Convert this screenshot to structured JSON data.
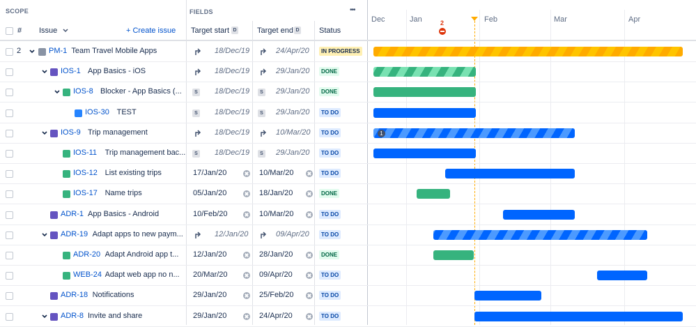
{
  "header": {
    "scope_label": "SCOPE",
    "fields_label": "FIELDS",
    "hash_label": "#",
    "issue_label": "Issue",
    "create_issue_label": "+ Create issue",
    "target_start_label": "Target start",
    "target_end_label": "Target end",
    "d_badge": "D",
    "status_label": "Status",
    "more_label": "•••"
  },
  "timeline": {
    "months": [
      "Dec",
      "Jan",
      "Feb",
      "Mar",
      "Apr"
    ],
    "today_marker_count": "2"
  },
  "rows": [
    {
      "num": "2",
      "key": "PM-1",
      "summary": "Team Travel Mobile Apps",
      "type": "init",
      "start": "18/Dec/19",
      "end": "24/Apr/20",
      "status": "IN PROGRESS",
      "bar_badge": ""
    },
    {
      "num": "",
      "key": "IOS-1",
      "summary": "App Basics - iOS",
      "type": "epic",
      "start": "18/Dec/19",
      "end": "29/Jan/20",
      "status": "DONE",
      "bar_badge": ""
    },
    {
      "num": "",
      "key": "IOS-8",
      "summary": "Blocker - App Basics (...",
      "type": "story",
      "start": "18/Dec/19",
      "end": "29/Jan/20",
      "status": "DONE",
      "bar_badge": ""
    },
    {
      "num": "",
      "key": "IOS-30",
      "summary": "TEST",
      "type": "task",
      "start": "18/Dec/19",
      "end": "29/Jan/20",
      "status": "TO DO",
      "bar_badge": ""
    },
    {
      "num": "",
      "key": "IOS-9",
      "summary": "Trip management",
      "type": "epic",
      "start": "18/Dec/19",
      "end": "10/Mar/20",
      "status": "TO DO",
      "bar_badge": "1"
    },
    {
      "num": "",
      "key": "IOS-11",
      "summary": "Trip management bac...",
      "type": "story",
      "start": "18/Dec/19",
      "end": "29/Jan/20",
      "status": "TO DO",
      "bar_badge": ""
    },
    {
      "num": "",
      "key": "IOS-12",
      "summary": "List existing trips",
      "type": "story",
      "start": "17/Jan/20",
      "end": "10/Mar/20",
      "status": "TO DO",
      "bar_badge": ""
    },
    {
      "num": "",
      "key": "IOS-17",
      "summary": "Name trips",
      "type": "story",
      "start": "05/Jan/20",
      "end": "18/Jan/20",
      "status": "DONE",
      "bar_badge": ""
    },
    {
      "num": "",
      "key": "ADR-1",
      "summary": "App Basics - Android",
      "type": "epic",
      "start": "10/Feb/20",
      "end": "10/Mar/20",
      "status": "TO DO",
      "bar_badge": ""
    },
    {
      "num": "",
      "key": "ADR-19",
      "summary": "Adapt apps to new paym...",
      "type": "epic",
      "start": "12/Jan/20",
      "end": "09/Apr/20",
      "status": "TO DO",
      "bar_badge": ""
    },
    {
      "num": "",
      "key": "ADR-20",
      "summary": "Adapt Android app t...",
      "type": "story",
      "start": "12/Jan/20",
      "end": "28/Jan/20",
      "status": "DONE",
      "bar_badge": ""
    },
    {
      "num": "",
      "key": "WEB-24",
      "summary": "Adapt web app no n...",
      "type": "story",
      "start": "20/Mar/20",
      "end": "09/Apr/20",
      "status": "TO DO",
      "bar_badge": ""
    },
    {
      "num": "",
      "key": "ADR-18",
      "summary": "Notifications",
      "type": "epic",
      "start": "29/Jan/20",
      "end": "25/Feb/20",
      "status": "TO DO",
      "bar_badge": ""
    },
    {
      "num": "",
      "key": "ADR-8",
      "summary": "Invite and share",
      "type": "epic",
      "start": "29/Jan/20",
      "end": "24/Apr/20",
      "status": "TO DO",
      "bar_badge": ""
    }
  ],
  "colors": {
    "in_progress": "#ffab00",
    "done": "#36b37e",
    "todo": "#0065ff",
    "today_line": "#ffab00",
    "link": "#0052cc"
  }
}
